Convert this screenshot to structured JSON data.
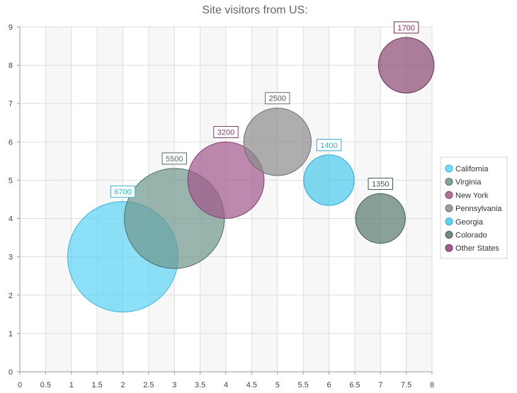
{
  "chart_data": {
    "type": "bubble",
    "title": "Site visitors from US:",
    "xlabel": "",
    "ylabel": "",
    "xlim": [
      0,
      8
    ],
    "ylim": [
      0,
      9
    ],
    "x_ticks": [
      "0",
      "0.5",
      "1",
      "1.5",
      "2",
      "2.5",
      "3",
      "3.5",
      "4",
      "4.5",
      "5",
      "5.5",
      "6",
      "6.5",
      "7",
      "7.5",
      "8"
    ],
    "y_ticks": [
      "0",
      "1",
      "2",
      "3",
      "4",
      "5",
      "6",
      "7",
      "8",
      "9"
    ],
    "grid": true,
    "alternating_bands": "vertical",
    "legend_position": "right",
    "series": [
      {
        "name": "California",
        "x": 2,
        "y": 3,
        "size": 6700,
        "label": "6700",
        "color": "#5bd3f5",
        "border": "#3bb3d5",
        "label_color": "#2fb4d8"
      },
      {
        "name": "Virginia",
        "x": 3,
        "y": 4,
        "size": 5500,
        "label": "5500",
        "color": "#6f948c",
        "border": "#4f6e68",
        "label_color": "#4f6e68"
      },
      {
        "name": "New York",
        "x": 4,
        "y": 5,
        "size": 3200,
        "label": "3200",
        "color": "#a3578b",
        "border": "#7d3d6a",
        "label_color": "#8a3f74"
      },
      {
        "name": "Pennsylvania",
        "x": 5,
        "y": 6,
        "size": 2500,
        "label": "2500",
        "color": "#8c8c8c",
        "border": "#6d6d6d",
        "label_color": "#555555"
      },
      {
        "name": "Georgia",
        "x": 6,
        "y": 5,
        "size": 1400,
        "label": "1400",
        "color": "#49c8ec",
        "border": "#2fa9cc",
        "label_color": "#2fb4d8"
      },
      {
        "name": "Colorado",
        "x": 7,
        "y": 4,
        "size": 1350,
        "label": "1350",
        "color": "#58776f",
        "border": "#3e5a53",
        "label_color": "#3e5a53"
      },
      {
        "name": "Other States",
        "x": 7.5,
        "y": 8,
        "size": 1700,
        "label": "1700",
        "color": "#8a4873",
        "border": "#6a3258",
        "label_color": "#7a3766"
      }
    ]
  }
}
